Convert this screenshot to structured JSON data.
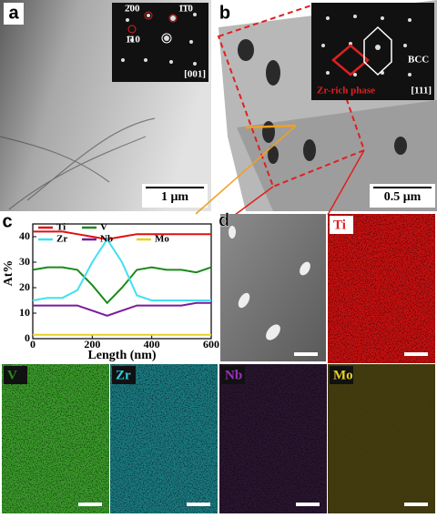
{
  "panels": {
    "a": {
      "label": "a",
      "inset_spots": [
        "2̄00",
        "1̄1̄0",
        "1̄10"
      ],
      "inset_zone": "[001]",
      "scale_bar": "1 μm"
    },
    "b": {
      "label": "b",
      "phase": "BCC",
      "precipitate": "Zr-rich phase",
      "inset_zone": "[111]",
      "scale_bar": "0.5 μm"
    },
    "c": {
      "label": "c"
    },
    "d": {
      "label": "d",
      "maps": [
        "Ti",
        "V",
        "Zr",
        "Nb",
        "Mo"
      ]
    }
  },
  "chart_data": {
    "type": "line",
    "xlabel": "Length (nm)",
    "ylabel": "At%",
    "x": [
      0,
      50,
      100,
      150,
      200,
      250,
      300,
      350,
      400,
      450,
      500,
      550,
      600
    ],
    "series": [
      {
        "name": "Ti",
        "color": "#e01010",
        "values": [
          42,
          42,
          42,
          41,
          40,
          39,
          40,
          41,
          41,
          41,
          41,
          41,
          41
        ]
      },
      {
        "name": "V",
        "color": "#1a8a1a",
        "values": [
          27,
          28,
          28,
          27,
          21,
          14,
          20,
          27,
          28,
          27,
          27,
          26,
          28
        ]
      },
      {
        "name": "Zr",
        "color": "#40e0f0",
        "values": [
          15,
          16,
          16,
          19,
          30,
          39,
          30,
          17,
          15,
          15,
          15,
          15,
          15
        ]
      },
      {
        "name": "Nb",
        "color": "#7a1a9a",
        "values": [
          13,
          13,
          13,
          13,
          11,
          9,
          11,
          13,
          13,
          13,
          13,
          14,
          14
        ]
      },
      {
        "name": "Mo",
        "color": "#e8d020",
        "values": [
          1.5,
          1.5,
          1.5,
          1.5,
          1.5,
          1.5,
          1.5,
          1.5,
          1.5,
          1.5,
          1.5,
          1.5,
          1.5
        ]
      }
    ],
    "xlim": [
      0,
      600
    ],
    "xticks": [
      0,
      200,
      400,
      600
    ],
    "ylim": [
      0,
      45
    ],
    "yticks": [
      0,
      10,
      20,
      30,
      40
    ]
  }
}
